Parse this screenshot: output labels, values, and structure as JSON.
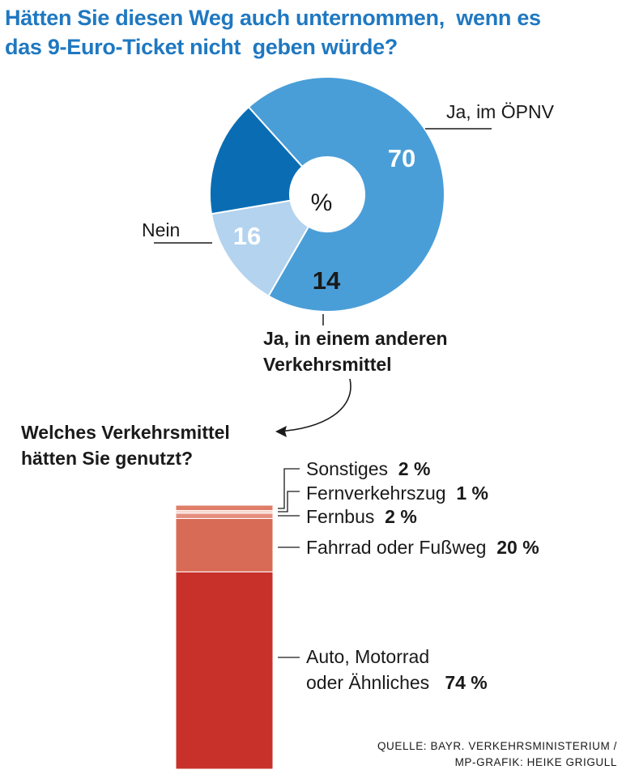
{
  "title_lines": [
    "Hätten Sie diesen Weg auch unternommen,  wenn es",
    "das 9-Euro-Ticket nicht  geben würde?"
  ],
  "chart_data": [
    {
      "type": "pie",
      "title": "Hätten Sie diesen Weg auch unternommen,  wenn es das 9-Euro-Ticket nicht  geben würde?",
      "unit": "%",
      "center_label": "%",
      "slices": [
        {
          "label": "Ja, im ÖPNV",
          "value": 70,
          "color": "#4a9ed8"
        },
        {
          "label": "Ja, in einem anderen Verkehrsmittel",
          "value": 14,
          "color": "#b3d3ee"
        },
        {
          "label": "Nein",
          "value": 16,
          "color": "#0a6db4"
        }
      ]
    },
    {
      "type": "bar",
      "subtype": "stacked-single",
      "title": "Welches  Verkehrsmittel hätten Sie genutzt?",
      "unit": "%",
      "categories": [
        "Auto, Motorrad oder Ähnliches",
        "Fahrrad oder Fußweg",
        "Fernbus",
        "Fernverkehrszug",
        "Sonstiges"
      ],
      "values": [
        74,
        20,
        2,
        1,
        2
      ],
      "colors": [
        "#c8312a",
        "#d86b55",
        "#e58f80",
        "#f6d4cc",
        "#e07d69"
      ]
    }
  ],
  "pie_labels": {
    "opnv": "Ja, im ÖPNV",
    "opnv_value": "70",
    "nein": "Nein",
    "nein_value": "16",
    "other_value": "14",
    "other_line1": "Ja, in einem anderen",
    "other_line2": "Verkehrsmittel",
    "center": "%"
  },
  "bar_section": {
    "question_line1": "Welches  Verkehrsmittel",
    "question_line2": "hätten Sie genutzt?",
    "sonstiges": {
      "label": "Sonstiges",
      "value": "2 %"
    },
    "fernverkehrszug": {
      "label": "Fernverkehrszug",
      "value": "1 %"
    },
    "fernbus": {
      "label": "Fernbus",
      "value": "2 %"
    },
    "fahrrad": {
      "label": "Fahrrad oder Fußweg",
      "value": "20 %"
    },
    "auto_line1": "Auto, Motorrad",
    "auto_line2": "oder Ähnliches",
    "auto_value": "74 %"
  },
  "source": {
    "line1": "QUELLE: BAYR. VERKEHRSMINISTERIUM /",
    "line2": "MP-GRAFIK: HEIKE GRIGULL"
  }
}
